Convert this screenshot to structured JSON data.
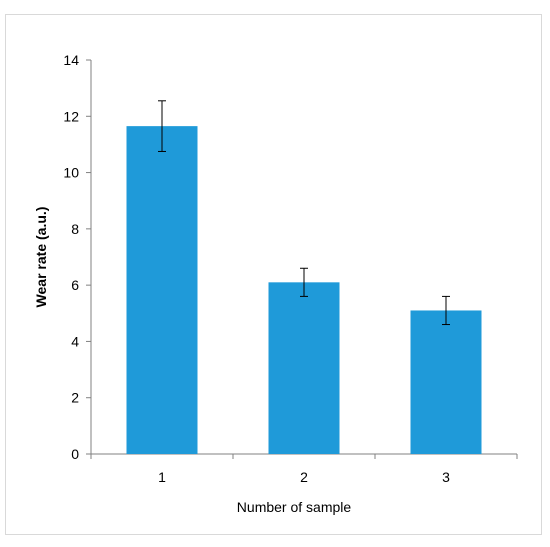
{
  "chart_data": {
    "type": "bar",
    "title": "",
    "xlabel": "Number of sample",
    "ylabel": "Wear rate (a.u.)",
    "categories": [
      "1",
      "2",
      "3"
    ],
    "values": [
      11.65,
      6.1,
      5.1
    ],
    "error": [
      0.9,
      0.5,
      0.5
    ],
    "ylim": [
      0,
      14
    ],
    "yticks": [
      0,
      2,
      4,
      6,
      8,
      10,
      12,
      14
    ],
    "bar_color": "#1f9ad9",
    "grid": false,
    "legend": "none"
  }
}
